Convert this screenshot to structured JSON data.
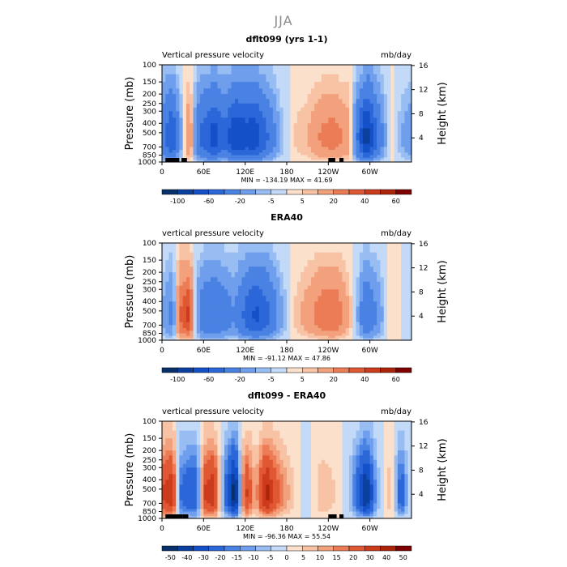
{
  "figure_title": "JJA",
  "colors": {
    "strong_down_blue": "#08306b",
    "neutral": "#f4f4f4",
    "strong_up_red": "#7f0000",
    "land_mask": "#000000"
  },
  "chart_data": [
    {
      "type": "heatmap",
      "title": "dflt099 (yrs 1-1)",
      "subtitle_left": "Vertical pressure velocity",
      "subtitle_right": "mb/day",
      "ylabel": "Pressure (mb)",
      "ylabel_right": "Height (km)",
      "x_ticks": [
        "0",
        "60E",
        "120E",
        "180",
        "120W",
        "60W"
      ],
      "y_ticks": [
        "100",
        "150",
        "200",
        "250",
        "300",
        "400",
        "500",
        "700",
        "850",
        "1000"
      ],
      "y_ticks_right": [
        "16",
        "12",
        "8",
        "4"
      ],
      "y_scale": "log pressure, reversed",
      "stats": "MIN = -134.19   MAX =  41.69",
      "colorbar_labels": [
        "-100",
        "-60",
        "-20",
        "-5",
        "5",
        "20",
        "40",
        "60"
      ],
      "colorbar_levels": [
        -120,
        -100,
        -80,
        -60,
        -40,
        -20,
        -10,
        -5,
        0,
        5,
        10,
        20,
        30,
        40,
        50,
        60,
        70
      ],
      "field_profile": {
        "lon": [
          0,
          15,
          25,
          40,
          50,
          60,
          75,
          90,
          105,
          120,
          135,
          150,
          170,
          190,
          210,
          230,
          250,
          270,
          280,
          295,
          310,
          330,
          345,
          360
        ],
        "value": [
          -30,
          -60,
          -20,
          25,
          -30,
          -50,
          -70,
          -45,
          -80,
          -70,
          -75,
          -45,
          -10,
          5,
          10,
          22,
          25,
          15,
          -30,
          -95,
          -40,
          5,
          -10,
          -20
        ]
      },
      "land_mask_lon": [
        [
          5,
          25
        ],
        [
          28,
          36
        ],
        [
          240,
          250
        ],
        [
          256,
          262
        ]
      ]
    },
    {
      "type": "heatmap",
      "title": "ERA40",
      "subtitle_left": "vertical pressure velocity",
      "subtitle_right": "mb/day",
      "ylabel": "Pressure (mb)",
      "ylabel_right": "Height (km)",
      "x_ticks": [
        "0",
        "60E",
        "120E",
        "180",
        "120W",
        "60W"
      ],
      "y_ticks": [
        "100",
        "150",
        "200",
        "250",
        "300",
        "400",
        "500",
        "700",
        "850",
        "1000"
      ],
      "y_ticks_right": [
        "16",
        "12",
        "8",
        "4"
      ],
      "y_scale": "log pressure, reversed",
      "stats": "MIN = -91.12   MAX =  47.86",
      "colorbar_labels": [
        "-100",
        "-60",
        "-20",
        "-5",
        "5",
        "20",
        "40",
        "60"
      ],
      "colorbar_levels": [
        -120,
        -100,
        -80,
        -60,
        -40,
        -20,
        -10,
        -5,
        0,
        5,
        10,
        20,
        30,
        40,
        50,
        60,
        70
      ],
      "field_profile": {
        "lon": [
          0,
          15,
          25,
          40,
          50,
          60,
          75,
          90,
          105,
          120,
          135,
          150,
          170,
          190,
          210,
          230,
          250,
          270,
          280,
          295,
          310,
          330,
          345,
          360
        ],
        "value": [
          -10,
          -25,
          30,
          45,
          -15,
          -35,
          -40,
          -30,
          -20,
          -45,
          -65,
          -50,
          -15,
          5,
          15,
          28,
          30,
          10,
          -5,
          -40,
          -20,
          5,
          0,
          -5
        ]
      },
      "land_mask_lon": []
    },
    {
      "type": "heatmap",
      "title": "dflt099 - ERA40",
      "subtitle_left": "vertical pressure velocity",
      "subtitle_right": "mb/day",
      "ylabel": "Pressure (mb)",
      "ylabel_right": "Height (km)",
      "x_ticks": [
        "0",
        "60E",
        "120E",
        "180",
        "120W",
        "60W"
      ],
      "y_ticks": [
        "100",
        "150",
        "200",
        "250",
        "300",
        "400",
        "500",
        "700",
        "850",
        "1000"
      ],
      "y_ticks_right": [
        "16",
        "12",
        "8",
        "4"
      ],
      "y_scale": "log pressure, reversed",
      "stats": "MIN = -96.36   MAX =  55.54",
      "colorbar_labels": [
        "-50",
        "-40",
        "-30",
        "-20",
        "-15",
        "-10",
        "-5",
        "0",
        "5",
        "10",
        "15",
        "20",
        "30",
        "40",
        "50"
      ],
      "colorbar_levels": [
        -60,
        -50,
        -40,
        -30,
        -20,
        -15,
        -10,
        -5,
        0,
        5,
        10,
        15,
        20,
        30,
        40,
        50,
        60
      ],
      "field_profile": {
        "lon": [
          0,
          15,
          25,
          40,
          50,
          60,
          75,
          90,
          105,
          120,
          135,
          150,
          170,
          190,
          210,
          230,
          250,
          270,
          280,
          295,
          310,
          330,
          345,
          360
        ],
        "value": [
          30,
          40,
          -20,
          -30,
          -30,
          30,
          40,
          -20,
          -60,
          35,
          10,
          45,
          20,
          5,
          -5,
          10,
          5,
          -5,
          -25,
          -55,
          -10,
          10,
          -30,
          5
        ]
      },
      "land_mask_lon": [
        [
          5,
          30
        ],
        [
          30,
          38
        ],
        [
          240,
          252
        ],
        [
          256,
          262
        ]
      ]
    }
  ]
}
